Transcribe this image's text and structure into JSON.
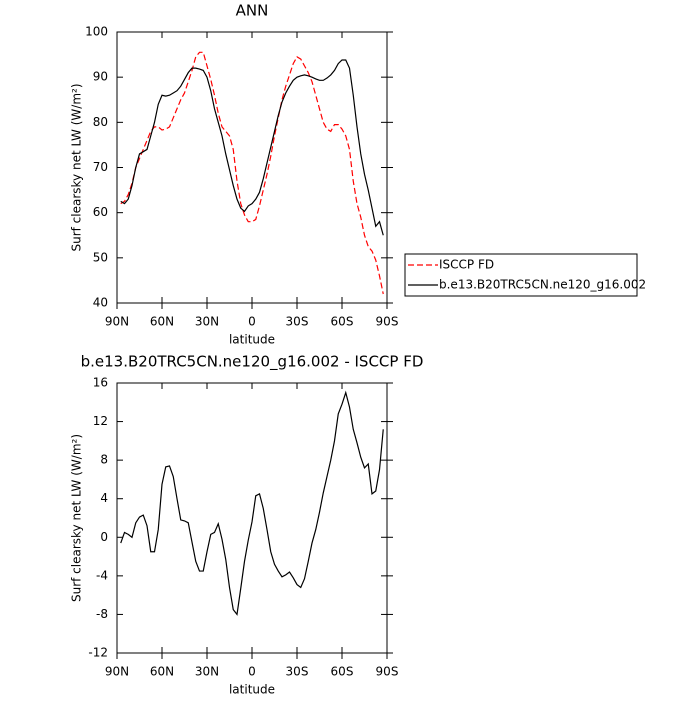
{
  "chart_data": [
    {
      "type": "line",
      "title": "ANN",
      "xlabel": "latitude",
      "ylabel": "Surf clearsky net LW (W/m²)",
      "x": [
        87.5,
        85,
        82.5,
        80,
        77.5,
        75,
        72.5,
        70,
        67.5,
        65,
        62.5,
        60,
        57.5,
        55,
        52.5,
        50,
        47.5,
        45,
        42.5,
        40,
        37.5,
        35,
        32.5,
        30,
        27.5,
        25,
        22.5,
        20,
        17.5,
        15,
        12.5,
        10,
        7.5,
        5,
        2.5,
        0,
        -2.5,
        -5,
        -7.5,
        -10,
        -12.5,
        -15,
        -17.5,
        -20,
        -22.5,
        -25,
        -27.5,
        -30,
        -32.5,
        -35,
        -37.5,
        -40,
        -42.5,
        -45,
        -47.5,
        -50,
        -52.5,
        -55,
        -57.5,
        -60,
        -62.5,
        -65,
        -67.5,
        -70,
        -72.5,
        -75,
        -77.5,
        -80,
        -82.5,
        -85,
        -87.5
      ],
      "series": [
        {
          "name": "ISCCP FD",
          "color": "#ff0000",
          "style": "dashed",
          "values": [
            62,
            62.5,
            64,
            66.5,
            70,
            72,
            74,
            76,
            78,
            79,
            79,
            78.3,
            78.5,
            79,
            81,
            83,
            85,
            86.5,
            89,
            91.5,
            94.5,
            95.5,
            95.5,
            92.5,
            89.5,
            86,
            82,
            79,
            78,
            77,
            74,
            67,
            62,
            59.5,
            58,
            58,
            58.5,
            61.5,
            65,
            68.5,
            72.5,
            77,
            81,
            85,
            88,
            90.5,
            93,
            94.5,
            94,
            92.5,
            91,
            89,
            86,
            83,
            80,
            78.5,
            78,
            79.5,
            79.5,
            78.5,
            77,
            74,
            67,
            62,
            59,
            55,
            52.5,
            51.5,
            49.5,
            46,
            42
          ]
        },
        {
          "name": "b.e13.B20TRC5CN.ne120_g16.002",
          "color": "#000000",
          "style": "solid",
          "values": [
            62.5,
            62,
            63,
            66,
            70,
            73,
            73.5,
            74,
            77,
            80,
            84,
            86,
            85.8,
            86,
            86.5,
            87,
            88,
            89.5,
            91,
            92,
            92,
            91.8,
            91.5,
            90,
            87,
            83,
            80,
            77,
            73,
            69.5,
            66,
            63,
            61,
            60.3,
            61.5,
            62,
            63,
            64.5,
            67.5,
            71,
            74.5,
            78,
            81.5,
            84.5,
            86.5,
            88,
            89.3,
            90,
            90.3,
            90.5,
            90.3,
            90,
            89.6,
            89.3,
            89.3,
            89.8,
            90.5,
            91.5,
            93,
            93.8,
            93.8,
            92,
            86,
            79,
            73,
            68.5,
            65,
            61,
            57,
            58,
            55
          ]
        }
      ],
      "xlim": [
        90,
        -90
      ],
      "xticks": [
        {
          "value": 90,
          "label": "90N"
        },
        {
          "value": 60,
          "label": "60N"
        },
        {
          "value": 30,
          "label": "30N"
        },
        0,
        {
          "value": -30,
          "label": "30S"
        },
        {
          "value": -60,
          "label": "60S"
        },
        {
          "value": -90,
          "label": "90S"
        }
      ],
      "ylim": [
        40,
        100
      ],
      "yticks": [
        40,
        50,
        60,
        70,
        80,
        90,
        100
      ],
      "legend": "right"
    },
    {
      "type": "line",
      "title": "b.e13.B20TRC5CN.ne120_g16.002 - ISCCP FD",
      "xlabel": "latitude",
      "ylabel": "Surf clearsky net LW (W/m²)",
      "x": [
        87.5,
        85,
        82.5,
        80,
        77.5,
        75,
        72.5,
        70,
        67.5,
        65,
        62.5,
        60,
        57.5,
        55,
        52.5,
        50,
        47.5,
        45,
        42.5,
        40,
        37.5,
        35,
        32.5,
        30,
        27.5,
        25,
        22.5,
        20,
        17.5,
        15,
        12.5,
        10,
        7.5,
        5,
        2.5,
        0,
        -2.5,
        -5,
        -7.5,
        -10,
        -12.5,
        -15,
        -17.5,
        -20,
        -22.5,
        -25,
        -27.5,
        -30,
        -32.5,
        -35,
        -37.5,
        -40,
        -42.5,
        -45,
        -47.5,
        -50,
        -52.5,
        -55,
        -57.5,
        -60,
        -62.5,
        -65,
        -67.5,
        -70,
        -72.5,
        -75,
        -77.5,
        -80,
        -82.5,
        -85,
        -87.5
      ],
      "color": "#000000",
      "values": [
        -0.6,
        0.5,
        0.3,
        0,
        1.5,
        2.1,
        2.3,
        1.2,
        -1.5,
        -1.5,
        0.8,
        5.5,
        7.3,
        7.4,
        6.3,
        4,
        1.8,
        1.7,
        1.5,
        -0.5,
        -2.5,
        -3.5,
        -3.5,
        -1.5,
        0.3,
        0.5,
        1.4,
        -0.2,
        -2.3,
        -5.2,
        -7.5,
        -8,
        -5.3,
        -2.5,
        -0.3,
        1.6,
        4.3,
        4.5,
        3,
        0.8,
        -1.5,
        -2.8,
        -3.5,
        -4.1,
        -3.9,
        -3.6,
        -4.2,
        -4.9,
        -5.2,
        -4.3,
        -2.5,
        -0.6,
        0.8,
        2.6,
        4.6,
        6.3,
        8,
        10,
        12.8,
        13.8,
        15,
        13.5,
        11.2,
        9.8,
        8.3,
        7.2,
        7.6,
        4.5,
        4.8,
        7,
        11.2
      ],
      "xlim": [
        90,
        -90
      ],
      "xticks": [
        {
          "value": 90,
          "label": "90N"
        },
        {
          "value": 60,
          "label": "60N"
        },
        {
          "value": 30,
          "label": "30N"
        },
        0,
        {
          "value": -30,
          "label": "30S"
        },
        {
          "value": -60,
          "label": "60S"
        },
        {
          "value": -90,
          "label": "90S"
        }
      ],
      "ylim": [
        -12,
        16
      ],
      "yticks": [
        -12,
        -8,
        -4,
        0,
        4,
        8,
        12,
        16
      ]
    }
  ]
}
